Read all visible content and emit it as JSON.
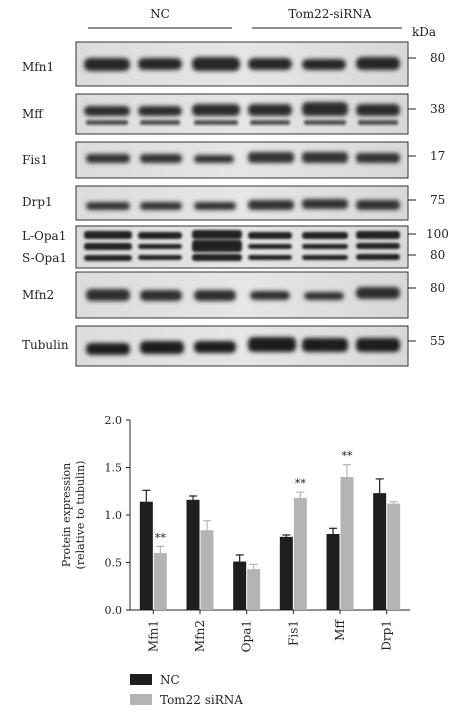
{
  "blot": {
    "groups": [
      {
        "label": "NC"
      },
      {
        "label": "Tom22-siRNA"
      }
    ],
    "kda_label": "kDa",
    "rows": [
      {
        "label": "Mfn1",
        "marker": "80"
      },
      {
        "label": "Mff",
        "marker": "38"
      },
      {
        "label": "Fis1",
        "marker": "17"
      },
      {
        "label": "Drp1",
        "marker": "75"
      },
      {
        "labels": [
          "L-Opa1",
          "S-Opa1"
        ],
        "markers": [
          "100",
          "80"
        ]
      },
      {
        "label": "Mfn2",
        "marker": "80"
      },
      {
        "label": "Tubulin",
        "marker": "55"
      }
    ]
  },
  "chart_data": {
    "type": "bar",
    "ylabel_line1": "Protein expression",
    "ylabel_line2": "(relative to tubulin)",
    "ylim": [
      0,
      2.0
    ],
    "yticks": [
      "0.0",
      "0.5",
      "1.0",
      "1.5",
      "2.0"
    ],
    "categories": [
      "Mfn1",
      "Mfn2",
      "Opa1",
      "Fis1",
      "Mff",
      "Drp1"
    ],
    "series": [
      {
        "name": "NC",
        "color": "#1e1e1e",
        "values": [
          1.14,
          1.16,
          0.51,
          0.77,
          0.8,
          1.23
        ],
        "errors": [
          0.12,
          0.04,
          0.07,
          0.02,
          0.06,
          0.15
        ]
      },
      {
        "name": "Tom22 siRNA",
        "color": "#b4b4b4",
        "values": [
          0.6,
          0.84,
          0.43,
          1.18,
          1.4,
          1.12
        ],
        "errors": [
          0.07,
          0.1,
          0.05,
          0.06,
          0.13,
          0.02
        ]
      }
    ],
    "annotations": [
      {
        "category": "Mfn1",
        "series": "Tom22 siRNA",
        "text": "**"
      },
      {
        "category": "Fis1",
        "series": "Tom22 siRNA",
        "text": "**"
      },
      {
        "category": "Mff",
        "series": "Tom22 siRNA",
        "text": "**"
      }
    ],
    "legend": "bottom-left"
  }
}
